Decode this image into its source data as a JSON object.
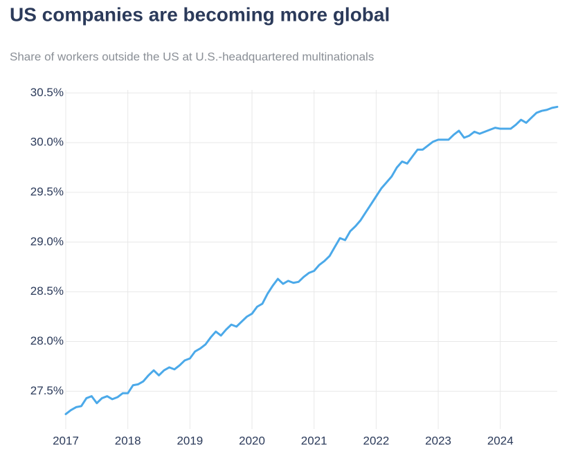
{
  "chart_data": {
    "type": "line",
    "title": "US companies are becoming more global",
    "subtitle": "Share of workers outside the US at U.S.-headquartered multinationals",
    "x": [
      2017,
      2017.083,
      2017.167,
      2017.25,
      2017.333,
      2017.417,
      2017.5,
      2017.583,
      2017.667,
      2017.75,
      2017.833,
      2017.917,
      2018,
      2018.083,
      2018.167,
      2018.25,
      2018.333,
      2018.417,
      2018.5,
      2018.583,
      2018.667,
      2018.75,
      2018.833,
      2018.917,
      2019,
      2019.083,
      2019.167,
      2019.25,
      2019.333,
      2019.417,
      2019.5,
      2019.583,
      2019.667,
      2019.75,
      2019.833,
      2019.917,
      2020,
      2020.083,
      2020.167,
      2020.25,
      2020.333,
      2020.417,
      2020.5,
      2020.583,
      2020.667,
      2020.75,
      2020.833,
      2020.917,
      2021,
      2021.083,
      2021.167,
      2021.25,
      2021.333,
      2021.417,
      2021.5,
      2021.583,
      2021.667,
      2021.75,
      2021.833,
      2021.917,
      2022,
      2022.083,
      2022.167,
      2022.25,
      2022.333,
      2022.417,
      2022.5,
      2022.583,
      2022.667,
      2022.75,
      2022.833,
      2022.917,
      2023,
      2023.083,
      2023.167,
      2023.25,
      2023.333,
      2023.417,
      2023.5,
      2023.583,
      2023.667,
      2023.75,
      2023.833,
      2023.917,
      2024,
      2024.083,
      2024.167,
      2024.25,
      2024.333,
      2024.417,
      2024.5,
      2024.583,
      2024.667,
      2024.75,
      2024.833,
      2024.917
    ],
    "series": [
      {
        "name": "Share of workers outside the US",
        "color": "#4ba9e9",
        "values": [
          27.27,
          27.31,
          27.34,
          27.35,
          27.43,
          27.45,
          27.38,
          27.43,
          27.45,
          27.42,
          27.44,
          27.48,
          27.48,
          27.56,
          27.57,
          27.6,
          27.66,
          27.71,
          27.66,
          27.71,
          27.74,
          27.72,
          27.76,
          27.81,
          27.83,
          27.9,
          27.93,
          27.97,
          28.04,
          28.1,
          28.06,
          28.12,
          28.17,
          28.15,
          28.2,
          28.25,
          28.28,
          28.35,
          28.38,
          28.48,
          28.56,
          28.63,
          28.58,
          28.61,
          28.59,
          28.6,
          28.65,
          28.69,
          28.71,
          28.77,
          28.81,
          28.86,
          28.95,
          29.04,
          29.02,
          29.11,
          29.16,
          29.22,
          29.3,
          29.38,
          29.46,
          29.54,
          29.6,
          29.66,
          29.75,
          29.81,
          29.79,
          29.86,
          29.93,
          29.93,
          29.97,
          30.01,
          30.03,
          30.03,
          30.03,
          30.08,
          30.12,
          30.05,
          30.07,
          30.11,
          30.09,
          30.11,
          30.13,
          30.15,
          30.14,
          30.14,
          30.14,
          30.18,
          30.23,
          30.2,
          30.25,
          30.3,
          30.32,
          30.33,
          30.35,
          30.36
        ]
      }
    ],
    "xlim": [
      2017,
      2024.917
    ],
    "xticks": [
      2017,
      2018,
      2019,
      2020,
      2021,
      2022,
      2023,
      2024
    ],
    "ylim": [
      27.12,
      30.53
    ],
    "yticks": [
      {
        "value": 27.5,
        "label": "27.5%"
      },
      {
        "value": 28,
        "label": "28.0%"
      },
      {
        "value": 28.5,
        "label": "28.5%"
      },
      {
        "value": 29,
        "label": "29.0%"
      },
      {
        "value": 29.5,
        "label": "29.5%"
      },
      {
        "value": 30,
        "label": "30.0%"
      },
      {
        "value": 30.5,
        "label": "30.5%"
      }
    ],
    "grid": true
  }
}
